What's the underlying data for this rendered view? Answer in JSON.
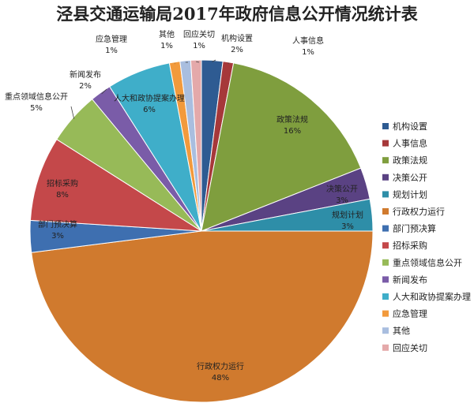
{
  "chart_data": {
    "type": "pie",
    "title": "泾县交通运输局2017年政府信息公开情况统计表",
    "legend_position": "right",
    "slices": [
      {
        "name": "机构设置",
        "value": 2,
        "label": "2%",
        "color": "#2E5B92"
      },
      {
        "name": "人事信息",
        "value": 1,
        "label": "1%",
        "color": "#A6383A"
      },
      {
        "name": "政策法规",
        "value": 16,
        "label": "16%",
        "color": "#7F9E3E"
      },
      {
        "name": "决策公开",
        "value": 3,
        "label": "3%",
        "color": "#5A4283"
      },
      {
        "name": "规划计划",
        "value": 3,
        "label": "3%",
        "color": "#2E8EA8"
      },
      {
        "name": "行政权力运行",
        "value": 48,
        "label": "48%",
        "color": "#D07A2E"
      },
      {
        "name": "部门预决算",
        "value": 3,
        "label": "3%",
        "color": "#3E6FB0"
      },
      {
        "name": "招标采购",
        "value": 8,
        "label": "8%",
        "color": "#C4484A"
      },
      {
        "name": "重点领域信息公开",
        "value": 5,
        "label": "5%",
        "color": "#97BA58"
      },
      {
        "name": "新闻发布",
        "value": 2,
        "label": "2%",
        "color": "#7A5CA8"
      },
      {
        "name": "人大和政协提案办理",
        "value": 6,
        "label": "6%",
        "color": "#3FAEC9"
      },
      {
        "name": "应急管理",
        "value": 1,
        "label": "1%",
        "color": "#F29A3C"
      },
      {
        "name": "其他",
        "value": 1,
        "label": "1%",
        "color": "#A9BEDF"
      },
      {
        "name": "回应关切",
        "value": 1,
        "label": "1%",
        "color": "#E4A9AA"
      }
    ]
  }
}
